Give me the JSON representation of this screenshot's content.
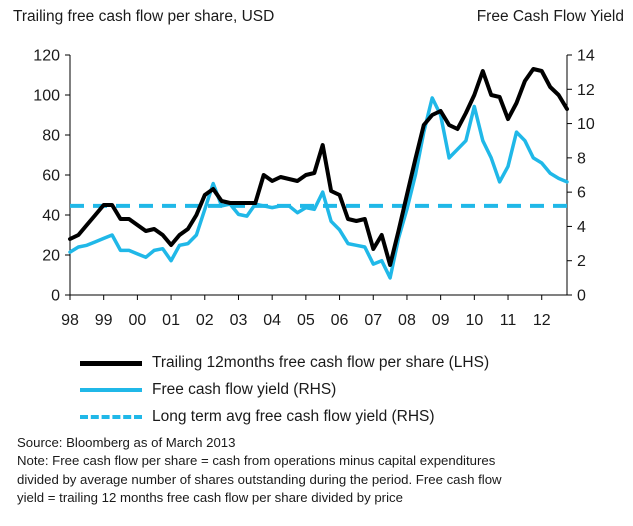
{
  "chart_data": {
    "type": "line",
    "title_left": "Trailing free cash flow per share, USD",
    "title_right": "Free Cash Flow Yield",
    "xlabel": "",
    "ylabel_left": "",
    "ylabel_right": "",
    "x_tick_labels": [
      "98",
      "99",
      "00",
      "01",
      "02",
      "03",
      "04",
      "05",
      "06",
      "07",
      "08",
      "09",
      "10",
      "11",
      "12"
    ],
    "y_left_ticks": [
      0,
      20,
      40,
      60,
      80,
      100,
      120
    ],
    "y_right_ticks": [
      0,
      2,
      4,
      6,
      8,
      10,
      12,
      14
    ],
    "ylim_left": [
      0,
      120
    ],
    "ylim_right": [
      0,
      14
    ],
    "xlim": [
      1998,
      2012.75
    ],
    "grid": false,
    "legend_placement": "below",
    "series": [
      {
        "name": "Trailing 12months free cash flow per share (LHS)",
        "axis": "left",
        "color": "#000000",
        "x": [
          1998.0,
          1998.25,
          1998.5,
          1998.75,
          1999.0,
          1999.25,
          1999.5,
          1999.75,
          2000.0,
          2000.25,
          2000.5,
          2000.75,
          2001.0,
          2001.25,
          2001.5,
          2001.75,
          2002.0,
          2002.25,
          2002.5,
          2002.75,
          2003.0,
          2003.25,
          2003.5,
          2003.75,
          2004.0,
          2004.25,
          2004.5,
          2004.75,
          2005.0,
          2005.25,
          2005.5,
          2005.75,
          2006.0,
          2006.25,
          2006.5,
          2006.75,
          2007.0,
          2007.25,
          2007.5,
          2007.75,
          2008.0,
          2008.25,
          2008.5,
          2008.75,
          2009.0,
          2009.25,
          2009.5,
          2009.75,
          2010.0,
          2010.25,
          2010.5,
          2010.75,
          2011.0,
          2011.25,
          2011.5,
          2011.75,
          2012.0,
          2012.25,
          2012.5,
          2012.75
        ],
        "values": [
          28,
          30,
          35,
          40,
          45,
          45,
          38,
          38,
          35,
          32,
          33,
          30,
          25,
          30,
          33,
          40,
          50,
          53,
          47,
          46,
          46,
          46,
          46,
          60,
          57,
          59,
          58,
          57,
          60,
          61,
          75,
          52,
          50,
          38,
          37,
          38,
          23,
          30,
          15,
          32,
          50,
          68,
          85,
          90,
          92,
          85,
          83,
          91,
          100,
          112,
          100,
          99,
          88,
          96,
          107,
          113,
          112,
          104,
          100,
          93
        ]
      },
      {
        "name": "Free cash flow yield (RHS)",
        "axis": "right",
        "color": "#20b8e8",
        "x": [
          1998.0,
          1998.25,
          1998.5,
          1998.75,
          1999.0,
          1999.25,
          1999.5,
          1999.75,
          2000.0,
          2000.25,
          2000.5,
          2000.75,
          2001.0,
          2001.25,
          2001.5,
          2001.75,
          2002.0,
          2002.25,
          2002.5,
          2002.75,
          2003.0,
          2003.25,
          2003.5,
          2003.75,
          2004.0,
          2004.25,
          2004.5,
          2004.75,
          2005.0,
          2005.25,
          2005.5,
          2005.75,
          2006.0,
          2006.25,
          2006.5,
          2006.75,
          2007.0,
          2007.25,
          2007.5,
          2007.75,
          2008.0,
          2008.25,
          2008.5,
          2008.75,
          2009.0,
          2009.25,
          2009.5,
          2009.75,
          2010.0,
          2010.25,
          2010.5,
          2010.75,
          2011.0,
          2011.25,
          2011.5,
          2011.75,
          2012.0,
          2012.25,
          2012.5,
          2012.75
        ],
        "values": [
          2.5,
          2.8,
          2.9,
          3.1,
          3.3,
          3.5,
          2.6,
          2.6,
          2.4,
          2.2,
          2.6,
          2.7,
          2.0,
          2.9,
          3.0,
          3.5,
          5.0,
          6.5,
          5.2,
          5.3,
          4.7,
          4.6,
          5.3,
          5.2,
          5.1,
          5.2,
          5.2,
          4.8,
          5.1,
          5.0,
          6.0,
          4.3,
          3.8,
          3.0,
          2.9,
          2.8,
          1.8,
          2.0,
          1.0,
          3.3,
          5.0,
          7.0,
          9.5,
          11.5,
          10.5,
          8.0,
          8.5,
          9.0,
          11.0,
          9.0,
          8.0,
          6.6,
          7.5,
          9.5,
          9.0,
          8.0,
          7.7,
          7.1,
          6.8,
          6.6
        ]
      },
      {
        "name": "Long term avg free cash flow yield (RHS)",
        "axis": "right",
        "color": "#20b8e8",
        "style": "dashed",
        "x": [
          1998.0,
          2012.75
        ],
        "values": [
          5.2,
          5.2
        ]
      }
    ]
  },
  "legend": [
    {
      "label": "Trailing 12months free cash flow per share (LHS)",
      "style": "solid-black"
    },
    {
      "label": "Free cash flow yield (RHS)",
      "style": "solid-blue"
    },
    {
      "label": "Long term avg free cash flow yield (RHS)",
      "style": "dash-blue"
    }
  ],
  "notes": {
    "source": "Source: Bloomberg as of March 2013",
    "line1": "Note: Free cash flow per share = cash from operations minus capital expenditures",
    "line2": "divided by average number of shares outstanding during the period. Free cash flow",
    "line3": "yield = trailing 12 months free cash flow per share divided by price"
  }
}
